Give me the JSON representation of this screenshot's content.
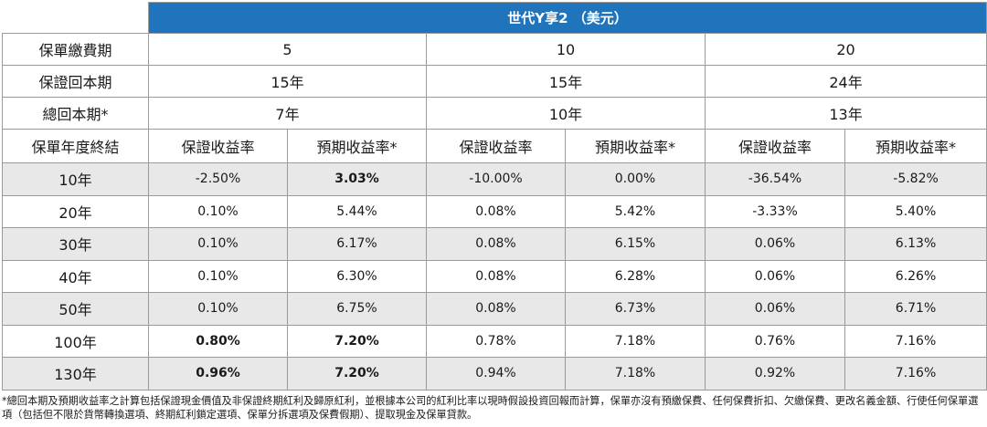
{
  "plan_title": "世代Y享2 （美元）",
  "rows_meta": [
    {
      "label": "保單繳費期",
      "values": [
        "5",
        "10",
        "20"
      ]
    },
    {
      "label": "保證回本期",
      "values": [
        "15年",
        "15年",
        "24年"
      ]
    },
    {
      "label": "總回本期*",
      "values": [
        "7年",
        "10年",
        "13年"
      ]
    }
  ],
  "sub_header": {
    "label": "保單年度終結",
    "cols": [
      "保證收益率",
      "預期收益率*",
      "保證收益率",
      "預期收益率*",
      "保證收益率",
      "預期收益率*"
    ]
  },
  "data_rows": [
    {
      "year": "10年",
      "cells": [
        "-2.50%",
        "3.03%",
        "-10.00%",
        "0.00%",
        "-36.54%",
        "-5.82%"
      ]
    },
    {
      "year": "20年",
      "cells": [
        "0.10%",
        "5.44%",
        "0.08%",
        "5.42%",
        "-3.33%",
        "5.40%"
      ]
    },
    {
      "year": "30年",
      "cells": [
        "0.10%",
        "6.17%",
        "0.08%",
        "6.15%",
        "0.06%",
        "6.13%"
      ]
    },
    {
      "year": "40年",
      "cells": [
        "0.10%",
        "6.30%",
        "0.08%",
        "6.28%",
        "0.06%",
        "6.26%"
      ]
    },
    {
      "year": "50年",
      "cells": [
        "0.10%",
        "6.75%",
        "0.08%",
        "6.73%",
        "0.06%",
        "6.71%"
      ]
    },
    {
      "year": "100年",
      "cells": [
        "0.80%",
        "7.20%",
        "0.78%",
        "7.18%",
        "0.76%",
        "7.16%"
      ]
    },
    {
      "year": "130年",
      "cells": [
        "0.96%",
        "7.20%",
        "0.94%",
        "7.18%",
        "0.92%",
        "7.16%"
      ]
    }
  ],
  "footnote": "*總回本期及預期收益率之計算包括保證現金價值及非保證終期紅利及歸原紅利，並根據本公司的紅利比率以現時假設投資回報而計算，保單亦沒有預繳保費、任何保費折扣、欠繳保費、更改名義金額、行使任何保單選項（包括但不限於貨幣轉換選項、終期紅利鎖定選項、保單分拆選項及保費假期）、提取現金及保單貸款。",
  "colors": {
    "header_blue": "#1f74bc",
    "stripe_gray": "#e8e8e8",
    "border": "#9a9a9a"
  }
}
